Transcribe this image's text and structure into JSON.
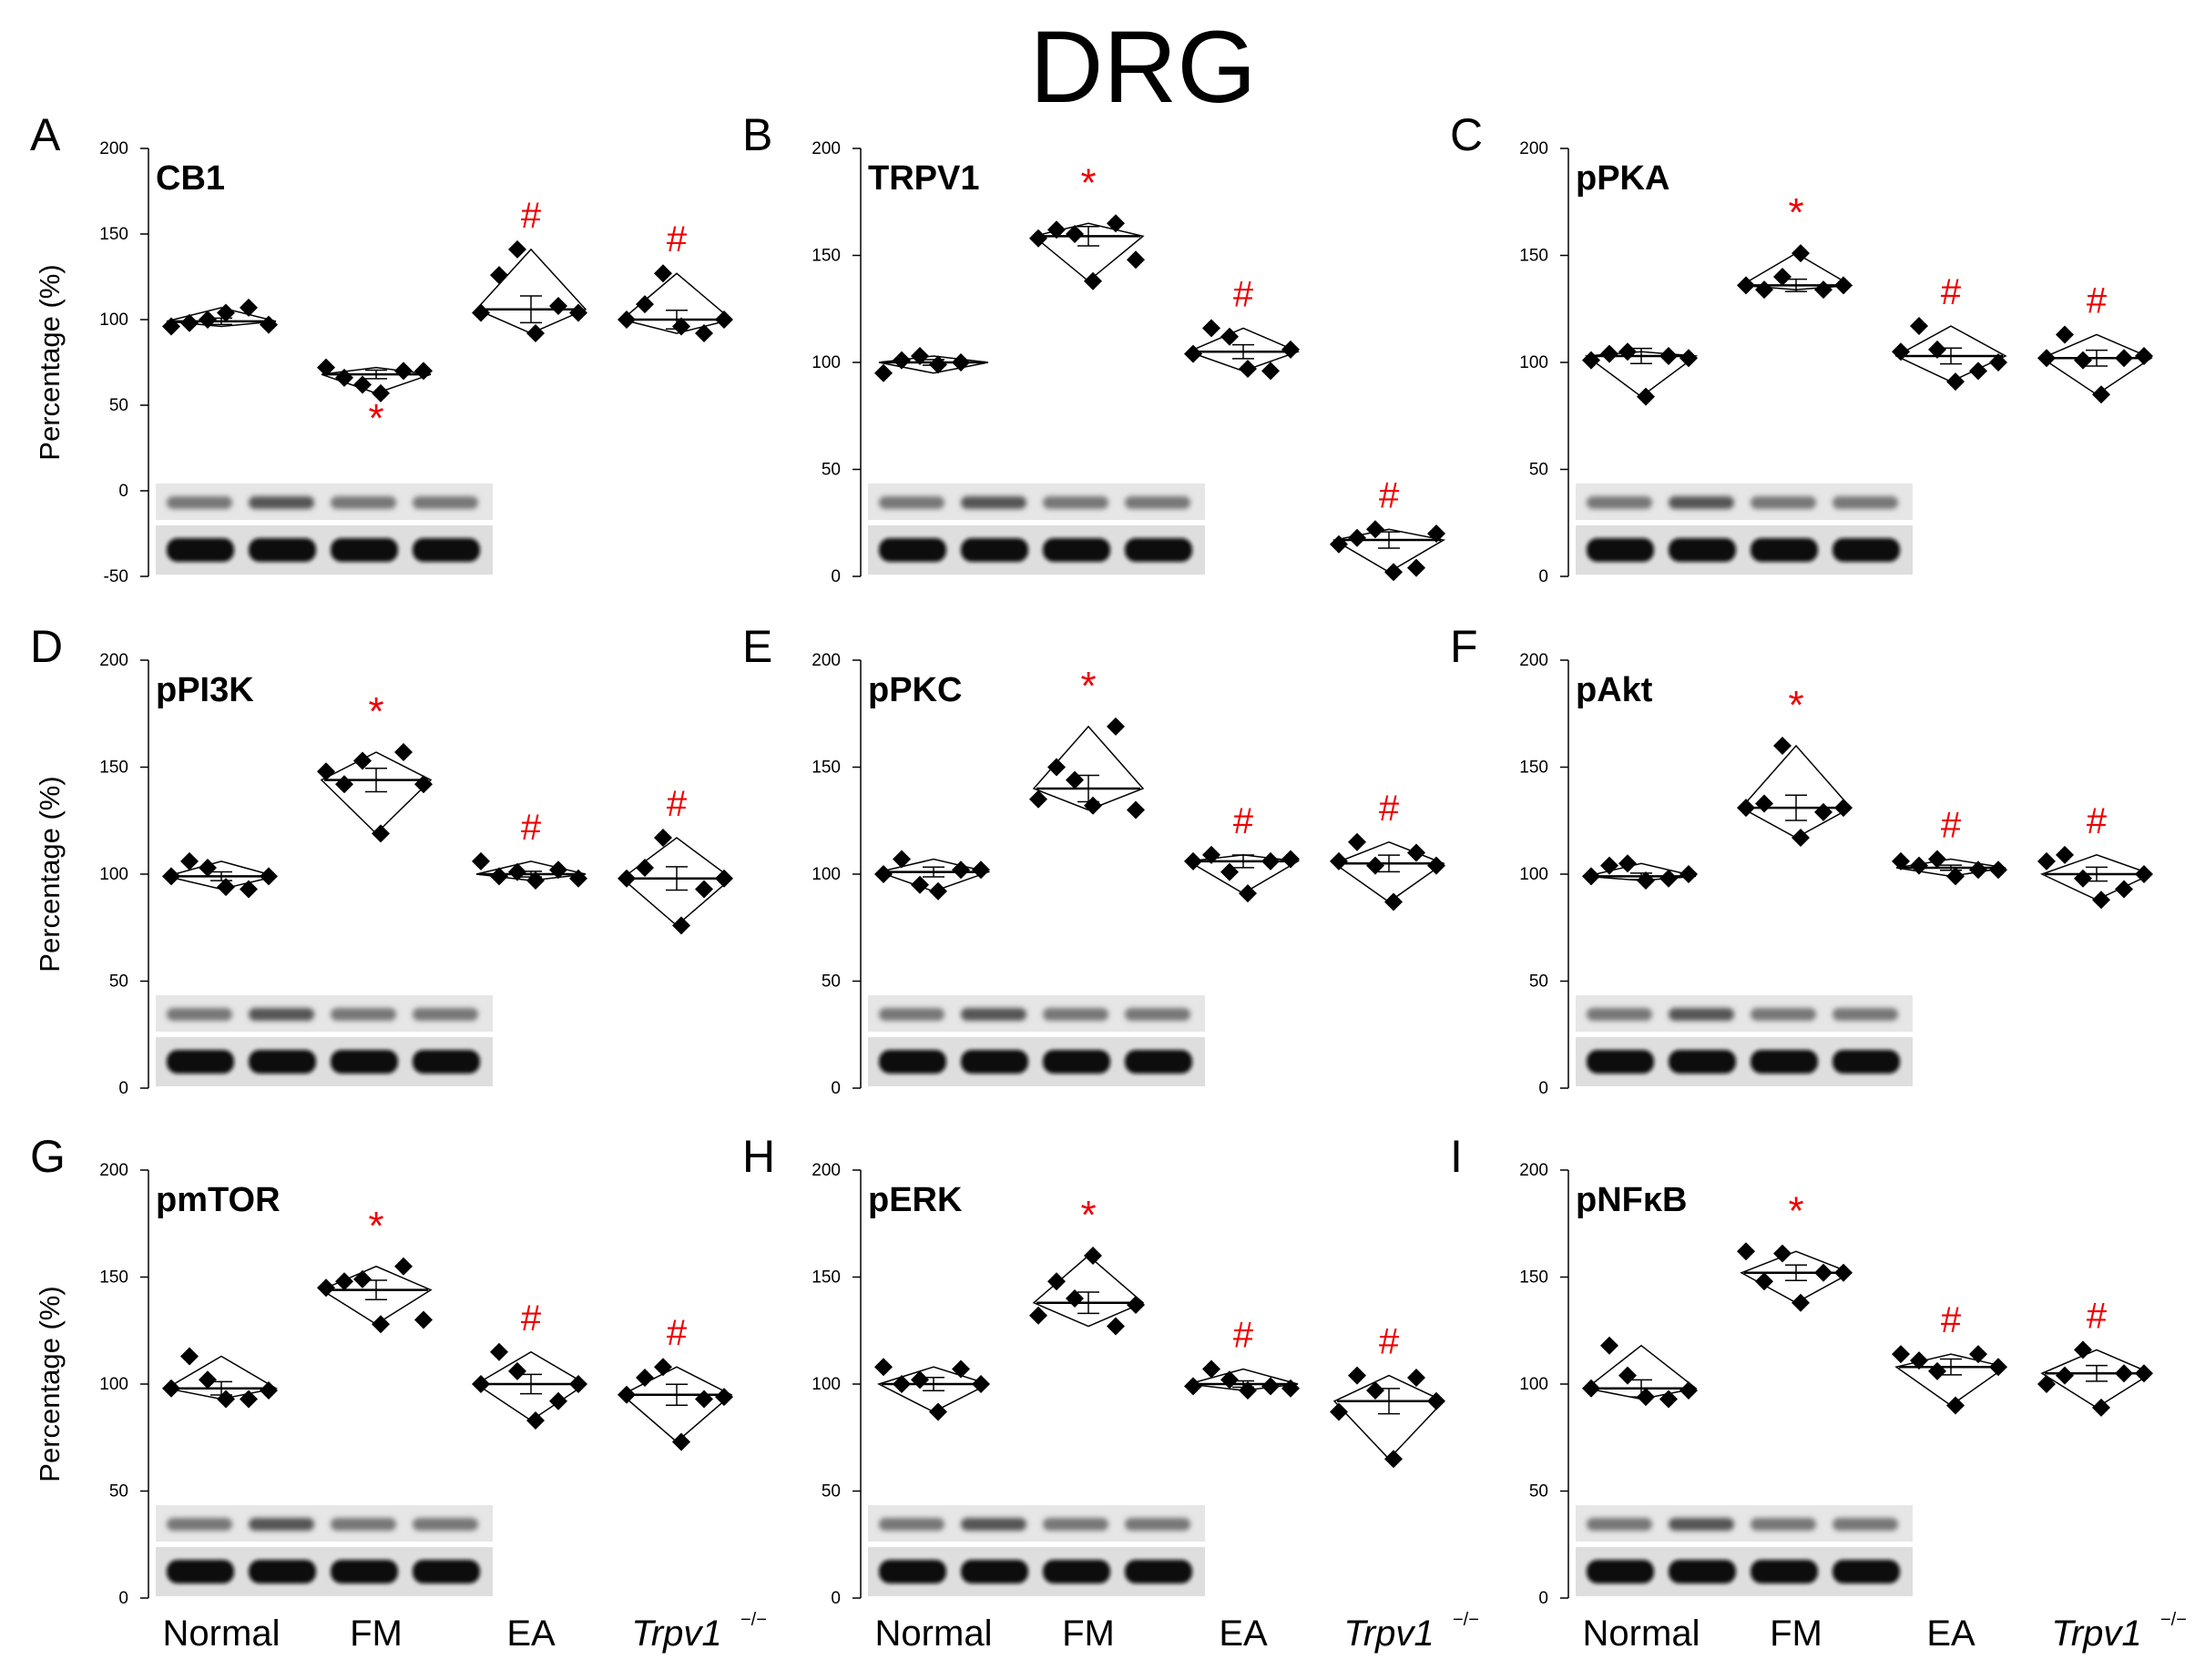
{
  "title": "DRG",
  "ylabel": "Percentage (%)",
  "categories": [
    "Normal",
    "FM",
    "EA",
    "Trpv1"
  ],
  "category_superscript": "−/−",
  "significance": {
    "vs_normal": "*",
    "vs_fm": "#",
    "color": "#ee0000"
  },
  "chart_data": [
    {
      "panel": "A",
      "type": "scatter",
      "title": "CB1",
      "ylim": [
        -50,
        200
      ],
      "yticks": [
        -50,
        0,
        50,
        100,
        150,
        200
      ],
      "groups": [
        {
          "category": "Normal",
          "points": [
            96,
            98,
            100,
            104,
            107,
            97
          ],
          "mean": 99,
          "sig": ""
        },
        {
          "category": "FM",
          "points": [
            72,
            66,
            62,
            57,
            70,
            70
          ],
          "mean": 68,
          "sig": "*",
          "sig_pos": "below"
        },
        {
          "category": "EA",
          "points": [
            104,
            126,
            141,
            92,
            108,
            104
          ],
          "mean": 106,
          "sig": "#",
          "sig_pos": "above"
        },
        {
          "category": "Trpv1",
          "points": [
            100,
            109,
            127,
            96,
            92,
            100
          ],
          "mean": 100,
          "sig": "#",
          "sig_pos": "above"
        }
      ],
      "blot_rows": 2
    },
    {
      "panel": "B",
      "type": "scatter",
      "title": "TRPV1",
      "ylim": [
        0,
        200
      ],
      "yticks": [
        0,
        50,
        100,
        150,
        200
      ],
      "groups": [
        {
          "category": "Normal",
          "points": [
            95,
            101,
            103,
            99,
            100
          ],
          "mean": 100,
          "sig": ""
        },
        {
          "category": "FM",
          "points": [
            158,
            162,
            160,
            138,
            165,
            148
          ],
          "mean": 159,
          "sig": "*",
          "sig_pos": "above"
        },
        {
          "category": "EA",
          "points": [
            104,
            116,
            112,
            97,
            96,
            106
          ],
          "mean": 105,
          "sig": "#",
          "sig_pos": "above"
        },
        {
          "category": "Trpv1",
          "points": [
            15,
            18,
            22,
            2,
            4,
            20
          ],
          "mean": 17,
          "sig": "#",
          "sig_pos": "above"
        }
      ],
      "blot_rows": 2
    },
    {
      "panel": "C",
      "type": "scatter",
      "title": "pPKA",
      "ylim": [
        0,
        200
      ],
      "yticks": [
        0,
        50,
        100,
        150,
        200
      ],
      "groups": [
        {
          "category": "Normal",
          "points": [
            101,
            104,
            105,
            84,
            103,
            102
          ],
          "mean": 103,
          "sig": ""
        },
        {
          "category": "FM",
          "points": [
            136,
            134,
            140,
            151,
            134,
            136
          ],
          "mean": 136,
          "sig": "*",
          "sig_pos": "above"
        },
        {
          "category": "EA",
          "points": [
            105,
            117,
            106,
            91,
            96,
            100
          ],
          "mean": 103,
          "sig": "#",
          "sig_pos": "above"
        },
        {
          "category": "Trpv1",
          "points": [
            102,
            113,
            101,
            85,
            102,
            103
          ],
          "mean": 102,
          "sig": "#",
          "sig_pos": "above"
        }
      ],
      "blot_rows": 2
    },
    {
      "panel": "D",
      "type": "scatter",
      "title": "pPI3K",
      "ylim": [
        0,
        200
      ],
      "yticks": [
        0,
        50,
        100,
        150,
        200
      ],
      "groups": [
        {
          "category": "Normal",
          "points": [
            99,
            106,
            103,
            94,
            93,
            99
          ],
          "mean": 99,
          "sig": ""
        },
        {
          "category": "FM",
          "points": [
            148,
            142,
            153,
            119,
            157,
            142
          ],
          "mean": 144,
          "sig": "*",
          "sig_pos": "above"
        },
        {
          "category": "EA",
          "points": [
            106,
            99,
            101,
            97,
            102,
            98
          ],
          "mean": 100,
          "sig": "#",
          "sig_pos": "above"
        },
        {
          "category": "Trpv1",
          "points": [
            98,
            103,
            117,
            76,
            93,
            98
          ],
          "mean": 98,
          "sig": "#",
          "sig_pos": "above"
        }
      ],
      "blot_rows": 2
    },
    {
      "panel": "E",
      "type": "scatter",
      "title": "pPKC",
      "ylim": [
        0,
        200
      ],
      "yticks": [
        0,
        50,
        100,
        150,
        200
      ],
      "groups": [
        {
          "category": "Normal",
          "points": [
            100,
            107,
            95,
            92,
            102,
            102
          ],
          "mean": 101,
          "sig": ""
        },
        {
          "category": "FM",
          "points": [
            135,
            150,
            144,
            132,
            169,
            130
          ],
          "mean": 140,
          "sig": "*",
          "sig_pos": "above"
        },
        {
          "category": "EA",
          "points": [
            106,
            109,
            101,
            91,
            106,
            107
          ],
          "mean": 106,
          "sig": "#",
          "sig_pos": "above"
        },
        {
          "category": "Trpv1",
          "points": [
            106,
            115,
            104,
            87,
            110,
            104
          ],
          "mean": 105,
          "sig": "#",
          "sig_pos": "above"
        }
      ],
      "blot_rows": 2
    },
    {
      "panel": "F",
      "type": "scatter",
      "title": "pAkt",
      "ylim": [
        0,
        200
      ],
      "yticks": [
        0,
        50,
        100,
        150,
        200
      ],
      "groups": [
        {
          "category": "Normal",
          "points": [
            99,
            104,
            105,
            97,
            98,
            100
          ],
          "mean": 99,
          "sig": ""
        },
        {
          "category": "FM",
          "points": [
            131,
            133,
            160,
            117,
            129,
            131
          ],
          "mean": 131,
          "sig": "*",
          "sig_pos": "above"
        },
        {
          "category": "EA",
          "points": [
            106,
            104,
            107,
            99,
            102,
            102
          ],
          "mean": 103,
          "sig": "#",
          "sig_pos": "above"
        },
        {
          "category": "Trpv1",
          "points": [
            106,
            109,
            98,
            88,
            93,
            100
          ],
          "mean": 100,
          "sig": "#",
          "sig_pos": "above"
        }
      ],
      "blot_rows": 2
    },
    {
      "panel": "G",
      "type": "scatter",
      "title": "pmTOR",
      "ylim": [
        0,
        200
      ],
      "yticks": [
        0,
        50,
        100,
        150,
        200
      ],
      "groups": [
        {
          "category": "Normal",
          "points": [
            98,
            113,
            102,
            93,
            93,
            97
          ],
          "mean": 98,
          "sig": ""
        },
        {
          "category": "FM",
          "points": [
            145,
            148,
            149,
            128,
            155,
            130
          ],
          "mean": 144,
          "sig": "*",
          "sig_pos": "above"
        },
        {
          "category": "EA",
          "points": [
            100,
            115,
            106,
            83,
            92,
            100
          ],
          "mean": 100,
          "sig": "#",
          "sig_pos": "above"
        },
        {
          "category": "Trpv1",
          "points": [
            95,
            103,
            108,
            73,
            93,
            94
          ],
          "mean": 95,
          "sig": "#",
          "sig_pos": "above"
        }
      ],
      "blot_rows": 2
    },
    {
      "panel": "H",
      "type": "scatter",
      "title": "pERK",
      "ylim": [
        0,
        200
      ],
      "yticks": [
        0,
        50,
        100,
        150,
        200
      ],
      "groups": [
        {
          "category": "Normal",
          "points": [
            108,
            100,
            102,
            87,
            107,
            100
          ],
          "mean": 100,
          "sig": ""
        },
        {
          "category": "FM",
          "points": [
            132,
            148,
            140,
            160,
            127,
            137
          ],
          "mean": 138,
          "sig": "*",
          "sig_pos": "above"
        },
        {
          "category": "EA",
          "points": [
            99,
            107,
            102,
            97,
            99,
            98
          ],
          "mean": 100,
          "sig": "#",
          "sig_pos": "above"
        },
        {
          "category": "Trpv1",
          "points": [
            87,
            104,
            97,
            65,
            103,
            92
          ],
          "mean": 92,
          "sig": "#",
          "sig_pos": "above"
        }
      ],
      "blot_rows": 2
    },
    {
      "panel": "I",
      "type": "scatter",
      "title": "pNFκB",
      "ylim": [
        0,
        200
      ],
      "yticks": [
        0,
        50,
        100,
        150,
        200
      ],
      "groups": [
        {
          "category": "Normal",
          "points": [
            98,
            118,
            104,
            94,
            93,
            97
          ],
          "mean": 98,
          "sig": ""
        },
        {
          "category": "FM",
          "points": [
            162,
            148,
            161,
            138,
            152,
            152
          ],
          "mean": 152,
          "sig": "*",
          "sig_pos": "above"
        },
        {
          "category": "EA",
          "points": [
            114,
            111,
            106,
            90,
            114,
            108
          ],
          "mean": 108,
          "sig": "#",
          "sig_pos": "above"
        },
        {
          "category": "Trpv1",
          "points": [
            100,
            104,
            116,
            89,
            105,
            105
          ],
          "mean": 105,
          "sig": "#",
          "sig_pos": "above"
        }
      ],
      "blot_rows": 2
    }
  ]
}
